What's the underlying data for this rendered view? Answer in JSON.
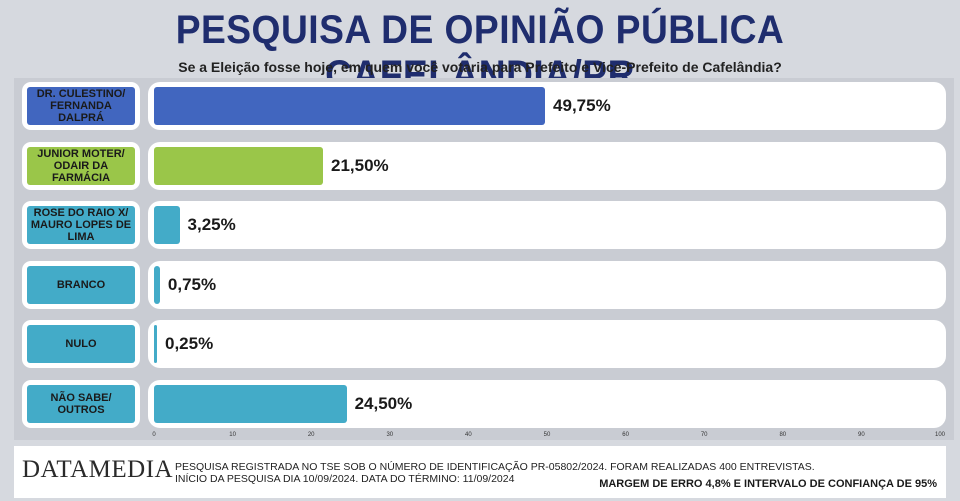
{
  "header": {
    "title": "PESQUISA DE OPINIÃO PÚBLICA CAFELÂNDIA/PR",
    "subtitle": "Se a Eleição fosse hoje, em quem você votaria para Prefeito e Vice-Prefeito de Cafelândia?"
  },
  "chart_data": {
    "type": "bar",
    "orientation": "horizontal",
    "categories": [
      [
        "DR. CULESTINO/",
        "FERNANDA DALPRÁ"
      ],
      [
        "JUNIOR MOTER/",
        "ODAIR DA FARMÁCIA"
      ],
      [
        "ROSE DO RAIO X/",
        "MAURO LOPES DE LIMA"
      ],
      [
        "BRANCO"
      ],
      [
        "NULO"
      ],
      [
        "NÃO SABE/",
        "OUTROS"
      ]
    ],
    "values": [
      49.75,
      21.5,
      3.25,
      0.75,
      0.25,
      24.5
    ],
    "value_labels": [
      "49,75%",
      "21,50%",
      "3,25%",
      "0,75%",
      "0,25%",
      "24,50%"
    ],
    "colors": [
      "#4166bf",
      "#9ac649",
      "#43abc8",
      "#43abc8",
      "#43abc8",
      "#43abc8"
    ],
    "xlim": [
      0,
      100
    ],
    "xticks": [
      0,
      10,
      20,
      30,
      40,
      50,
      60,
      70,
      80,
      90,
      100
    ],
    "grid": false,
    "legend": "none"
  },
  "footer": {
    "logo": "DATAMEDIA",
    "line1": "PESQUISA REGISTRADA NO TSE SOB O NÚMERO DE IDENTIFICAÇÃO PR-05802/2024. FORAM REALIZADAS 400 ENTREVISTAS.",
    "line2": "INÍCIO DA PESQUISA DIA 10/09/2024. DATA DO TÉRMINO: 11/09/2024",
    "margin": "MARGEM DE ERRO 4,8% E INTERVALO DE CONFIANÇA DE 95%"
  }
}
